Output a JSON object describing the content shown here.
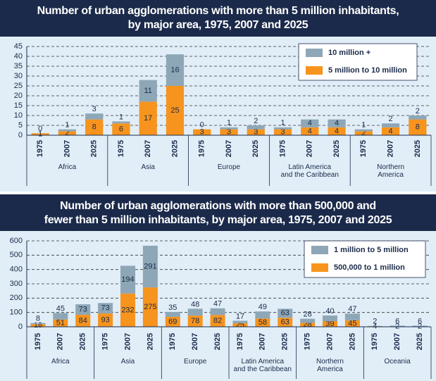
{
  "chart_data": [
    {
      "type": "bar",
      "stacked": true,
      "title": "Number of urban agglomerations with more than 5 million inhabitants,\nby major area, 1975, 2007 and 2025",
      "groups": [
        "Africa",
        "Asia",
        "Europe",
        "Latin America\nand the Caribbean",
        "Northern\nAmerica"
      ],
      "categories": [
        "1975",
        "2007",
        "2025",
        "1975",
        "2007",
        "2025",
        "1975",
        "2007",
        "2025",
        "1975",
        "2007",
        "2025",
        "1975",
        "2007",
        "2025"
      ],
      "series": [
        {
          "name": "5 million to 10 million",
          "color": "#f7941d",
          "values": [
            1,
            2,
            8,
            6,
            17,
            25,
            3,
            3,
            3,
            3,
            4,
            4,
            2,
            4,
            8
          ]
        },
        {
          "name": "10 million +",
          "color": "#8ea7b7",
          "values": [
            0,
            1,
            3,
            1,
            11,
            16,
            0,
            1,
            2,
            1,
            4,
            4,
            1,
            2,
            2
          ]
        }
      ],
      "ylim": [
        0,
        45
      ],
      "yticks": [
        0,
        5,
        10,
        15,
        20,
        25,
        30,
        35,
        40,
        45
      ],
      "grid": true,
      "legend": "upper right"
    },
    {
      "type": "bar",
      "stacked": true,
      "title": "Number of urban agglomerations with more than 500,000 and\nfewer than 5 million inhabitants, by major area, 1975, 2007 and 2025",
      "groups": [
        "Africa",
        "Asia",
        "Europe",
        "Latin America\nand the Caribbean",
        "Northern\nAmerica",
        "Oceania"
      ],
      "categories": [
        "1975",
        "2007",
        "2025",
        "1975",
        "2007",
        "2025",
        "1975",
        "2007",
        "2025",
        "1975",
        "2007",
        "2025",
        "1975",
        "2007",
        "2025",
        "1975",
        "2007",
        "2025"
      ],
      "series": [
        {
          "name": "500,000 to 1 million",
          "color": "#f7941d",
          "values": [
            18,
            51,
            84,
            93,
            232,
            275,
            69,
            78,
            82,
            25,
            58,
            63,
            28,
            39,
            45,
            4,
            2,
            2
          ]
        },
        {
          "name": "1 million to 5 million",
          "color": "#8ea7b7",
          "values": [
            8,
            45,
            73,
            73,
            194,
            291,
            35,
            48,
            47,
            17,
            49,
            63,
            28,
            40,
            47,
            2,
            6,
            6
          ]
        }
      ],
      "ylim": [
        0,
        600
      ],
      "yticks": [
        0,
        100,
        200,
        300,
        400,
        500,
        600
      ],
      "grid": true,
      "legend": "upper right"
    }
  ]
}
